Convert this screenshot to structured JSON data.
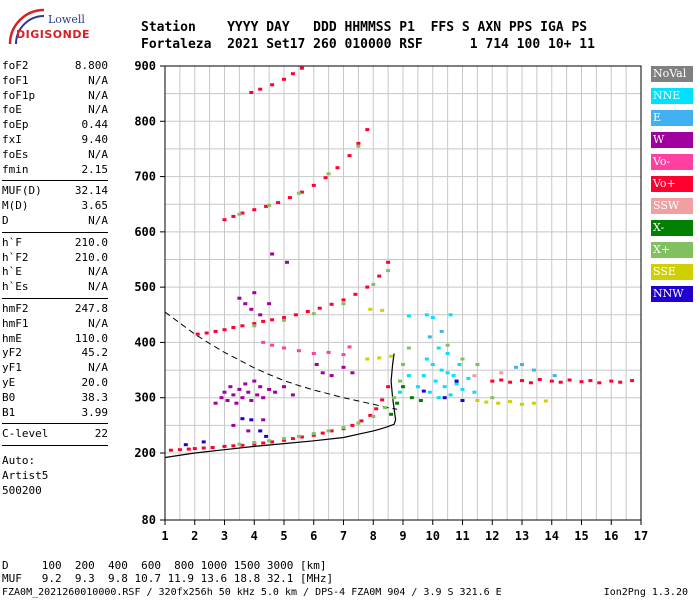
{
  "logo": {
    "brand": "Lowell",
    "name": "DIGISONDE"
  },
  "header": {
    "line1": "Station    YYYY DAY   DDD HHMMSS P1  FFS S AXN PPS IGA PS",
    "line2": "Fortaleza  2021 Set17 260 010000 RSF      1 714 100 10+ 11"
  },
  "params_group1": [
    {
      "label": "foF2",
      "value": "8.800"
    },
    {
      "label": "foF1",
      "value": "N/A"
    },
    {
      "label": "foF1p",
      "value": "N/A"
    },
    {
      "label": "foE",
      "value": "N/A"
    },
    {
      "label": "foEp",
      "value": "0.44"
    },
    {
      "label": "fxI",
      "value": "9.40"
    },
    {
      "label": "foEs",
      "value": "N/A"
    },
    {
      "label": "fmin",
      "value": "2.15"
    }
  ],
  "params_group2": [
    {
      "label": "MUF(D)",
      "value": "32.14"
    },
    {
      "label": "M(D)",
      "value": "3.65"
    },
    {
      "label": "D",
      "value": "N/A"
    }
  ],
  "params_group3": [
    {
      "label": "h`F",
      "value": "210.0"
    },
    {
      "label": "h`F2",
      "value": "210.0"
    },
    {
      "label": "h`E",
      "value": "N/A"
    },
    {
      "label": "h`Es",
      "value": "N/A"
    }
  ],
  "params_group4": [
    {
      "label": "hmF2",
      "value": "247.8"
    },
    {
      "label": "hmF1",
      "value": "N/A"
    },
    {
      "label": "hmE",
      "value": "110.0"
    },
    {
      "label": "yF2",
      "value": "45.2"
    },
    {
      "label": "yF1",
      "value": "N/A"
    },
    {
      "label": "yE",
      "value": "20.0"
    },
    {
      "label": "B0",
      "value": "38.3"
    },
    {
      "label": "B1",
      "value": "3.99"
    }
  ],
  "params_group5": [
    {
      "label": "C-level",
      "value": "22"
    }
  ],
  "auto": {
    "line1": "Auto:",
    "line2": "Artist5",
    "line3": "500200"
  },
  "legend": [
    {
      "label": "NoVal",
      "color": "#808080"
    },
    {
      "label": "NNE",
      "color": "#00e0ff"
    },
    {
      "label": "E",
      "color": "#40b0f0"
    },
    {
      "label": "W",
      "color": "#a000a0"
    },
    {
      "label": "Vo-",
      "color": "#ff40a0"
    },
    {
      "label": "Vo+",
      "color": "#ff0030"
    },
    {
      "label": "SSW",
      "color": "#f0a0a0"
    },
    {
      "label": "X-",
      "color": "#008000"
    },
    {
      "label": "X+",
      "color": "#80c060"
    },
    {
      "label": "SSE",
      "color": "#d0d000"
    },
    {
      "label": "NNW",
      "color": "#2000d0"
    }
  ],
  "table": {
    "line1": "D     100  200  400  600  800 1000 1500 3000 [km]",
    "line2": "MUF   9.2  9.3  9.8 10.7 11.9 13.6 18.8 32.1 [MHz]"
  },
  "footer": {
    "left": "FZA0M_2021260010000.RSF / 320fx256h 50 kHz 5.0 km / DPS-4 FZA0M 904 / 3.9 S 321.6 E",
    "right": "Ion2Png 1.3.20"
  },
  "chart_data": {
    "type": "scatter",
    "title": "",
    "xlabel": "",
    "ylabel": "",
    "x_ticks": [
      1,
      2,
      3,
      4,
      5,
      6,
      7,
      8,
      9,
      10,
      11,
      12,
      13,
      14,
      15,
      16,
      17
    ],
    "y_ticks": [
      80,
      200,
      300,
      400,
      500,
      600,
      700,
      800,
      900
    ],
    "xlim": [
      1,
      17
    ],
    "grid": true,
    "series": [
      {
        "name": "Vo+",
        "color": "#ff0030",
        "points": [
          [
            1.2,
            205
          ],
          [
            1.5,
            206
          ],
          [
            1.8,
            207
          ],
          [
            2.0,
            208
          ],
          [
            2.3,
            209
          ],
          [
            2.6,
            210
          ],
          [
            3.0,
            212
          ],
          [
            3.3,
            213
          ],
          [
            3.6,
            214
          ],
          [
            4.0,
            216
          ],
          [
            4.3,
            218
          ],
          [
            4.6,
            220
          ],
          [
            5.0,
            223
          ],
          [
            5.3,
            226
          ],
          [
            5.6,
            229
          ],
          [
            6.0,
            232
          ],
          [
            6.3,
            236
          ],
          [
            6.6,
            240
          ],
          [
            7.0,
            244
          ],
          [
            7.3,
            250
          ],
          [
            7.6,
            258
          ],
          [
            7.9,
            268
          ],
          [
            8.1,
            280
          ],
          [
            8.3,
            296
          ],
          [
            8.5,
            320
          ],
          [
            2.1,
            415
          ],
          [
            2.4,
            417
          ],
          [
            2.7,
            420
          ],
          [
            3.0,
            423
          ],
          [
            3.3,
            427
          ],
          [
            3.6,
            430
          ],
          [
            4.0,
            434
          ],
          [
            4.3,
            438
          ],
          [
            4.6,
            441
          ],
          [
            5.0,
            445
          ],
          [
            5.4,
            450
          ],
          [
            5.8,
            456
          ],
          [
            6.2,
            462
          ],
          [
            6.6,
            469
          ],
          [
            7.0,
            477
          ],
          [
            7.4,
            487
          ],
          [
            7.8,
            500
          ],
          [
            8.2,
            520
          ],
          [
            8.5,
            545
          ],
          [
            3.0,
            622
          ],
          [
            3.3,
            628
          ],
          [
            3.6,
            634
          ],
          [
            4.0,
            640
          ],
          [
            4.4,
            646
          ],
          [
            4.8,
            653
          ],
          [
            5.2,
            662
          ],
          [
            5.6,
            672
          ],
          [
            6.0,
            684
          ],
          [
            6.4,
            698
          ],
          [
            6.8,
            716
          ],
          [
            7.2,
            738
          ],
          [
            7.5,
            760
          ],
          [
            7.8,
            785
          ],
          [
            3.9,
            852
          ],
          [
            4.2,
            858
          ],
          [
            4.6,
            866
          ],
          [
            5.0,
            876
          ],
          [
            5.3,
            886
          ],
          [
            5.6,
            896
          ],
          [
            12.0,
            330
          ],
          [
            12.3,
            332
          ],
          [
            12.6,
            328
          ],
          [
            13.0,
            331
          ],
          [
            13.3,
            327
          ],
          [
            13.6,
            333
          ],
          [
            14.0,
            330
          ],
          [
            14.3,
            328
          ],
          [
            14.6,
            332
          ],
          [
            15.0,
            329
          ],
          [
            15.3,
            331
          ],
          [
            15.6,
            327
          ],
          [
            16.0,
            330
          ],
          [
            16.3,
            328
          ],
          [
            16.7,
            331
          ]
        ]
      },
      {
        "name": "X+",
        "color": "#80c060",
        "points": [
          [
            3.5,
            216
          ],
          [
            4.0,
            219
          ],
          [
            4.5,
            222
          ],
          [
            5.0,
            226
          ],
          [
            5.5,
            230
          ],
          [
            6.0,
            235
          ],
          [
            6.5,
            240
          ],
          [
            7.0,
            246
          ],
          [
            7.5,
            254
          ],
          [
            8.0,
            266
          ],
          [
            8.4,
            282
          ],
          [
            8.7,
            300
          ],
          [
            8.9,
            330
          ],
          [
            9.0,
            360
          ],
          [
            9.2,
            390
          ],
          [
            4.0,
            430
          ],
          [
            5.0,
            440
          ],
          [
            6.0,
            452
          ],
          [
            7.0,
            470
          ],
          [
            8.0,
            505
          ],
          [
            8.5,
            530
          ],
          [
            3.5,
            632
          ],
          [
            4.5,
            648
          ],
          [
            5.5,
            670
          ],
          [
            6.5,
            705
          ],
          [
            7.5,
            755
          ],
          [
            10.5,
            395
          ],
          [
            11.0,
            370
          ],
          [
            11.5,
            360
          ],
          [
            12.0,
            300
          ]
        ]
      },
      {
        "name": "X-",
        "color": "#008000",
        "points": [
          [
            8.6,
            270
          ],
          [
            8.8,
            290
          ],
          [
            9.0,
            320
          ],
          [
            9.3,
            300
          ],
          [
            9.6,
            295
          ]
        ]
      },
      {
        "name": "NNE",
        "color": "#00e0ff",
        "points": [
          [
            9.5,
            320
          ],
          [
            9.7,
            340
          ],
          [
            9.9,
            310
          ],
          [
            10.0,
            360
          ],
          [
            10.1,
            330
          ],
          [
            10.2,
            300
          ],
          [
            10.3,
            350
          ],
          [
            10.4,
            320
          ],
          [
            10.5,
            380
          ],
          [
            10.6,
            305
          ],
          [
            10.7,
            340
          ],
          [
            10.8,
            325
          ],
          [
            10.9,
            360
          ],
          [
            11.0,
            315
          ],
          [
            11.2,
            335
          ],
          [
            11.4,
            310
          ],
          [
            9.8,
            370
          ],
          [
            10.2,
            390
          ],
          [
            8.9,
            310
          ],
          [
            9.2,
            340
          ],
          [
            10.5,
            345
          ],
          [
            10.0,
            445
          ],
          [
            10.6,
            450
          ],
          [
            9.2,
            448
          ],
          [
            9.8,
            450
          ]
        ]
      },
      {
        "name": "E",
        "color": "#40b0f0",
        "points": [
          [
            12.8,
            355
          ],
          [
            13.0,
            360
          ],
          [
            13.4,
            350
          ],
          [
            14.1,
            340
          ],
          [
            9.9,
            410
          ],
          [
            10.3,
            420
          ]
        ]
      },
      {
        "name": "W",
        "color": "#a000a0",
        "points": [
          [
            2.7,
            290
          ],
          [
            2.9,
            300
          ],
          [
            3.0,
            310
          ],
          [
            3.1,
            295
          ],
          [
            3.2,
            320
          ],
          [
            3.3,
            305
          ],
          [
            3.4,
            290
          ],
          [
            3.5,
            315
          ],
          [
            3.6,
            300
          ],
          [
            3.7,
            325
          ],
          [
            3.8,
            310
          ],
          [
            3.9,
            295
          ],
          [
            4.0,
            330
          ],
          [
            4.1,
            305
          ],
          [
            4.2,
            320
          ],
          [
            4.3,
            300
          ],
          [
            4.5,
            315
          ],
          [
            4.7,
            310
          ],
          [
            5.0,
            320
          ],
          [
            5.3,
            305
          ],
          [
            3.5,
            480
          ],
          [
            3.7,
            470
          ],
          [
            3.9,
            460
          ],
          [
            4.0,
            490
          ],
          [
            4.2,
            450
          ],
          [
            4.5,
            470
          ],
          [
            3.3,
            250
          ],
          [
            3.8,
            240
          ],
          [
            4.3,
            260
          ],
          [
            6.1,
            360
          ],
          [
            6.3,
            345
          ],
          [
            6.6,
            340
          ],
          [
            7.0,
            355
          ],
          [
            7.3,
            345
          ],
          [
            4.6,
            560
          ],
          [
            5.1,
            545
          ]
        ]
      },
      {
        "name": "Vo-",
        "color": "#ff40a0",
        "points": [
          [
            4.3,
            400
          ],
          [
            4.6,
            395
          ],
          [
            5.0,
            390
          ],
          [
            5.5,
            385
          ],
          [
            6.0,
            380
          ],
          [
            6.5,
            382
          ],
          [
            7.0,
            378
          ],
          [
            7.2,
            392
          ]
        ]
      },
      {
        "name": "SSE",
        "color": "#d0d000",
        "points": [
          [
            11.5,
            295
          ],
          [
            11.8,
            292
          ],
          [
            12.2,
            290
          ],
          [
            12.6,
            293
          ],
          [
            13.0,
            288
          ],
          [
            13.4,
            290
          ],
          [
            13.8,
            294
          ],
          [
            7.8,
            370
          ],
          [
            8.2,
            372
          ],
          [
            8.6,
            375
          ],
          [
            7.9,
            460
          ],
          [
            8.3,
            458
          ]
        ]
      },
      {
        "name": "NNW",
        "color": "#2000d0",
        "points": [
          [
            1.7,
            215
          ],
          [
            2.3,
            220
          ],
          [
            3.9,
            260
          ],
          [
            4.2,
            240
          ],
          [
            4.4,
            230
          ],
          [
            3.6,
            262
          ],
          [
            10.4,
            300
          ],
          [
            11.0,
            295
          ],
          [
            9.7,
            312
          ],
          [
            10.8,
            330
          ]
        ]
      },
      {
        "name": "SSW",
        "color": "#f0a0a0",
        "points": [
          [
            11.4,
            340
          ],
          [
            12.3,
            345
          ]
        ]
      }
    ],
    "trace_solid": [
      [
        1.0,
        192
      ],
      [
        2.0,
        200
      ],
      [
        3.0,
        206
      ],
      [
        4.0,
        212
      ],
      [
        5.0,
        217
      ],
      [
        6.0,
        222
      ],
      [
        7.0,
        228
      ],
      [
        7.5,
        234
      ],
      [
        8.0,
        240
      ],
      [
        8.4,
        246
      ],
      [
        8.7,
        252
      ],
      [
        8.75,
        260
      ],
      [
        8.7,
        280
      ],
      [
        8.65,
        300
      ],
      [
        8.6,
        330
      ],
      [
        8.65,
        360
      ],
      [
        8.7,
        380
      ]
    ],
    "trace_dashed": [
      [
        1.0,
        455
      ],
      [
        1.5,
        435
      ],
      [
        2.0,
        415
      ],
      [
        2.5,
        398
      ],
      [
        3.0,
        382
      ],
      [
        3.5,
        368
      ],
      [
        4.0,
        354
      ],
      [
        4.5,
        342
      ],
      [
        5.0,
        331
      ],
      [
        5.5,
        322
      ],
      [
        6.0,
        314
      ],
      [
        6.5,
        307
      ],
      [
        7.0,
        300
      ],
      [
        7.5,
        294
      ],
      [
        8.0,
        288
      ],
      [
        8.5,
        282
      ],
      [
        8.8,
        279
      ]
    ]
  }
}
